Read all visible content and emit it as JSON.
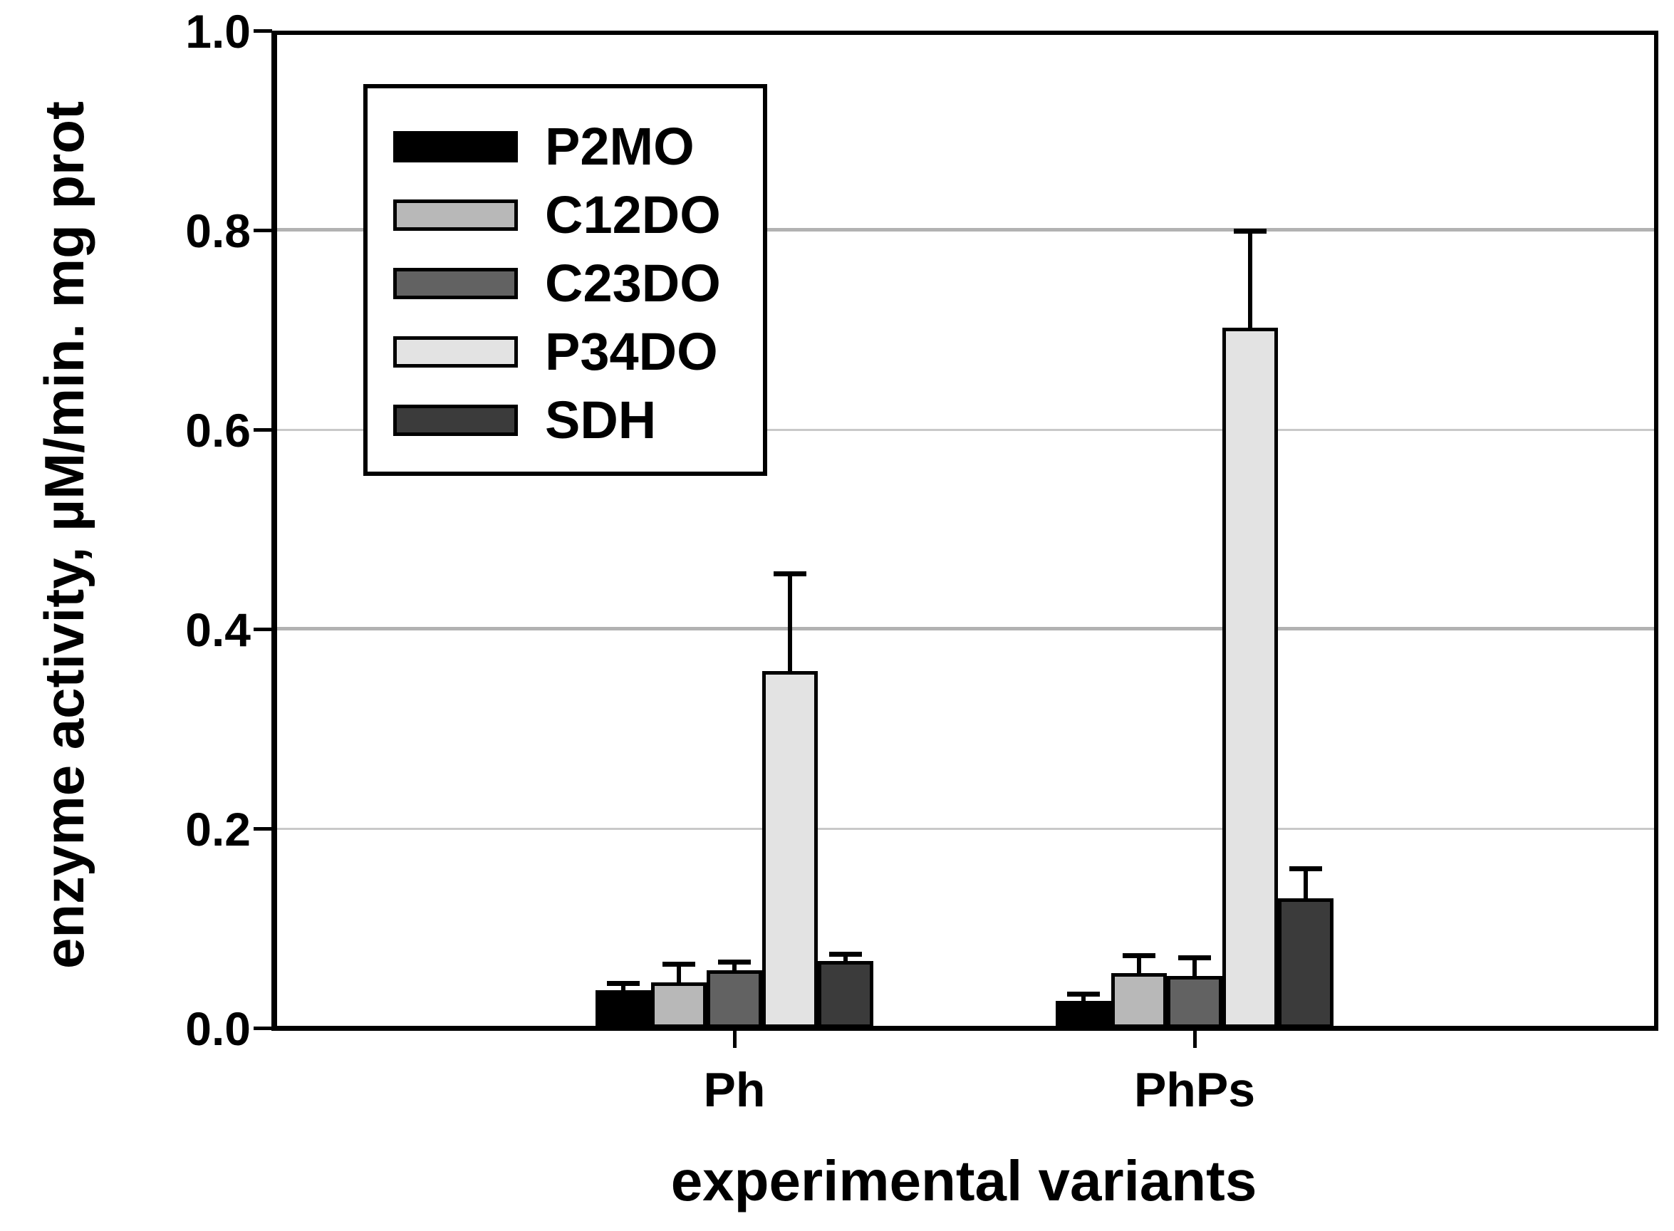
{
  "chart_data": {
    "type": "bar",
    "title": "",
    "xlabel": "experimental variants",
    "ylabel": "enzyme activity, µM/min. mg prot",
    "ylim": [
      0.0,
      1.0
    ],
    "yticks": [
      0.0,
      0.2,
      0.4,
      0.6,
      0.8,
      1.0
    ],
    "grid": true,
    "legend_position": "upper-left",
    "error_bars": "upper-only",
    "categories": [
      "Ph",
      "PhPs"
    ],
    "series": [
      {
        "name": "P2MO",
        "color": "#000000",
        "values": [
          0.038,
          0.027
        ],
        "errors": [
          0.009,
          0.009
        ]
      },
      {
        "name": "C12DO",
        "color": "#b8b8b8",
        "values": [
          0.046,
          0.055
        ],
        "errors": [
          0.021,
          0.02
        ]
      },
      {
        "name": "C23DO",
        "color": "#626262",
        "values": [
          0.058,
          0.052
        ],
        "errors": [
          0.011,
          0.021
        ]
      },
      {
        "name": "P34DO",
        "color": "#e3e3e3",
        "values": [
          0.358,
          0.702
        ],
        "errors": [
          0.1,
          0.099
        ]
      },
      {
        "name": "SDH",
        "color": "#3b3b3b",
        "values": [
          0.067,
          0.13
        ],
        "errors": [
          0.009,
          0.032
        ]
      }
    ]
  }
}
